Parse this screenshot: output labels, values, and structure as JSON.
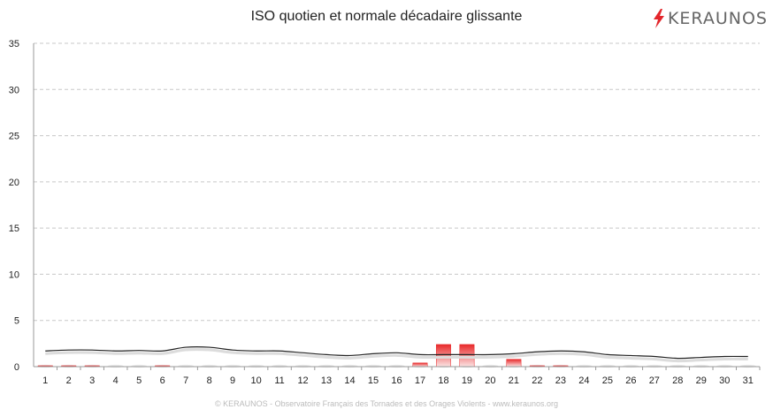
{
  "chart_data": {
    "type": "bar",
    "title": "ISO quotien et normale décadaire glissante",
    "categories": [
      "1",
      "2",
      "3",
      "4",
      "5",
      "6",
      "7",
      "8",
      "9",
      "10",
      "11",
      "12",
      "13",
      "14",
      "15",
      "16",
      "17",
      "18",
      "19",
      "20",
      "21",
      "22",
      "23",
      "24",
      "25",
      "26",
      "27",
      "28",
      "29",
      "30",
      "31"
    ],
    "ylim": [
      0,
      35
    ],
    "yticks": [
      0,
      5,
      10,
      15,
      20,
      25,
      30,
      35
    ],
    "grid": true,
    "legend": "none",
    "series": [
      {
        "kind": "bar",
        "values": [
          0.1,
          0.1,
          0.1,
          0,
          0,
          0.1,
          0,
          0,
          0,
          0,
          0,
          0,
          0,
          0,
          0,
          0,
          0.4,
          2.4,
          2.4,
          0,
          0.8,
          0.1,
          0.1,
          0,
          0,
          0,
          0,
          0,
          0,
          0,
          0
        ],
        "color": "#e8292a"
      },
      {
        "kind": "line",
        "values": [
          1.7,
          1.8,
          1.8,
          1.7,
          1.75,
          1.7,
          2.1,
          2.1,
          1.8,
          1.7,
          1.7,
          1.5,
          1.3,
          1.2,
          1.4,
          1.5,
          1.3,
          1.3,
          1.3,
          1.3,
          1.4,
          1.6,
          1.7,
          1.6,
          1.3,
          1.2,
          1.1,
          0.9,
          1.0,
          1.1,
          1.1
        ],
        "color": "#222222"
      }
    ]
  },
  "brand": {
    "name": "KERAUNOS",
    "accent": "#e3262b"
  },
  "footer": "© KERAUNOS - Observatoire Français des Tornades et des Orages Violents - www.keraunos.org"
}
